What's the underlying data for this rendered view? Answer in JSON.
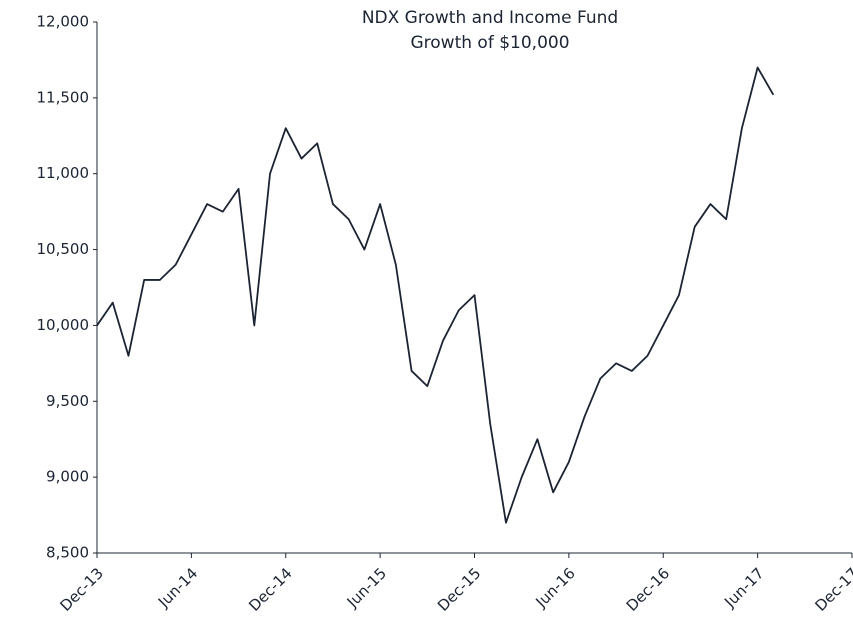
{
  "chart_data": {
    "type": "line",
    "title": "NDX Growth and Income Fund",
    "subtitle": "Growth of $10,000",
    "x": [
      "Dec-13",
      "Jan-14",
      "Feb-14",
      "Mar-14",
      "Apr-14",
      "May-14",
      "Jun-14",
      "Jul-14",
      "Aug-14",
      "Sep-14",
      "Oct-14",
      "Nov-14",
      "Dec-14",
      "Jan-15",
      "Feb-15",
      "Mar-15",
      "Apr-15",
      "May-15",
      "Jun-15",
      "Jul-15",
      "Aug-15",
      "Sep-15",
      "Oct-15",
      "Nov-15",
      "Dec-15",
      "Jan-16",
      "Feb-16",
      "Mar-16",
      "Apr-16",
      "May-16",
      "Jun-16",
      "Jul-16",
      "Aug-16",
      "Sep-16",
      "Oct-16",
      "Nov-16",
      "Dec-16",
      "Jan-17",
      "Feb-17",
      "Mar-17",
      "Apr-17",
      "May-17",
      "Jun-17",
      "Jul-17"
    ],
    "series": [
      {
        "color": "#1c2433",
        "values": [
          10000,
          10150,
          9800,
          10300,
          10300,
          10400,
          10600,
          10800,
          10750,
          10900,
          10000,
          11000,
          11300,
          11100,
          11200,
          10800,
          10700,
          10500,
          10800,
          10400,
          9700,
          9600,
          9900,
          10100,
          10200,
          9350,
          8700,
          9000,
          9250,
          8900,
          9100,
          9400,
          9650,
          9750,
          9700,
          9800,
          10000,
          10200,
          10650,
          10800,
          10700,
          11300,
          11700,
          11520
        ]
      }
    ],
    "xlim": [
      "Dec-13",
      "Dec-17"
    ],
    "xticks": [
      "Dec-13",
      "Jun-14",
      "Dec-14",
      "Jun-15",
      "Dec-15",
      "Jun-16",
      "Dec-16",
      "Jun-17",
      "Dec-17"
    ],
    "ylim": [
      8500,
      12000
    ],
    "yticks": [
      {
        "value": 8500,
        "label": "8,500"
      },
      {
        "value": 9000,
        "label": "9,000"
      },
      {
        "value": 9500,
        "label": "9,500"
      },
      {
        "value": 10000,
        "label": "10,000"
      },
      {
        "value": 10500,
        "label": "10,500"
      },
      {
        "value": 11000,
        "label": "11,000"
      },
      {
        "value": 11500,
        "label": "11,500"
      },
      {
        "value": 12000,
        "label": "12,000"
      }
    ],
    "grid": false
  }
}
